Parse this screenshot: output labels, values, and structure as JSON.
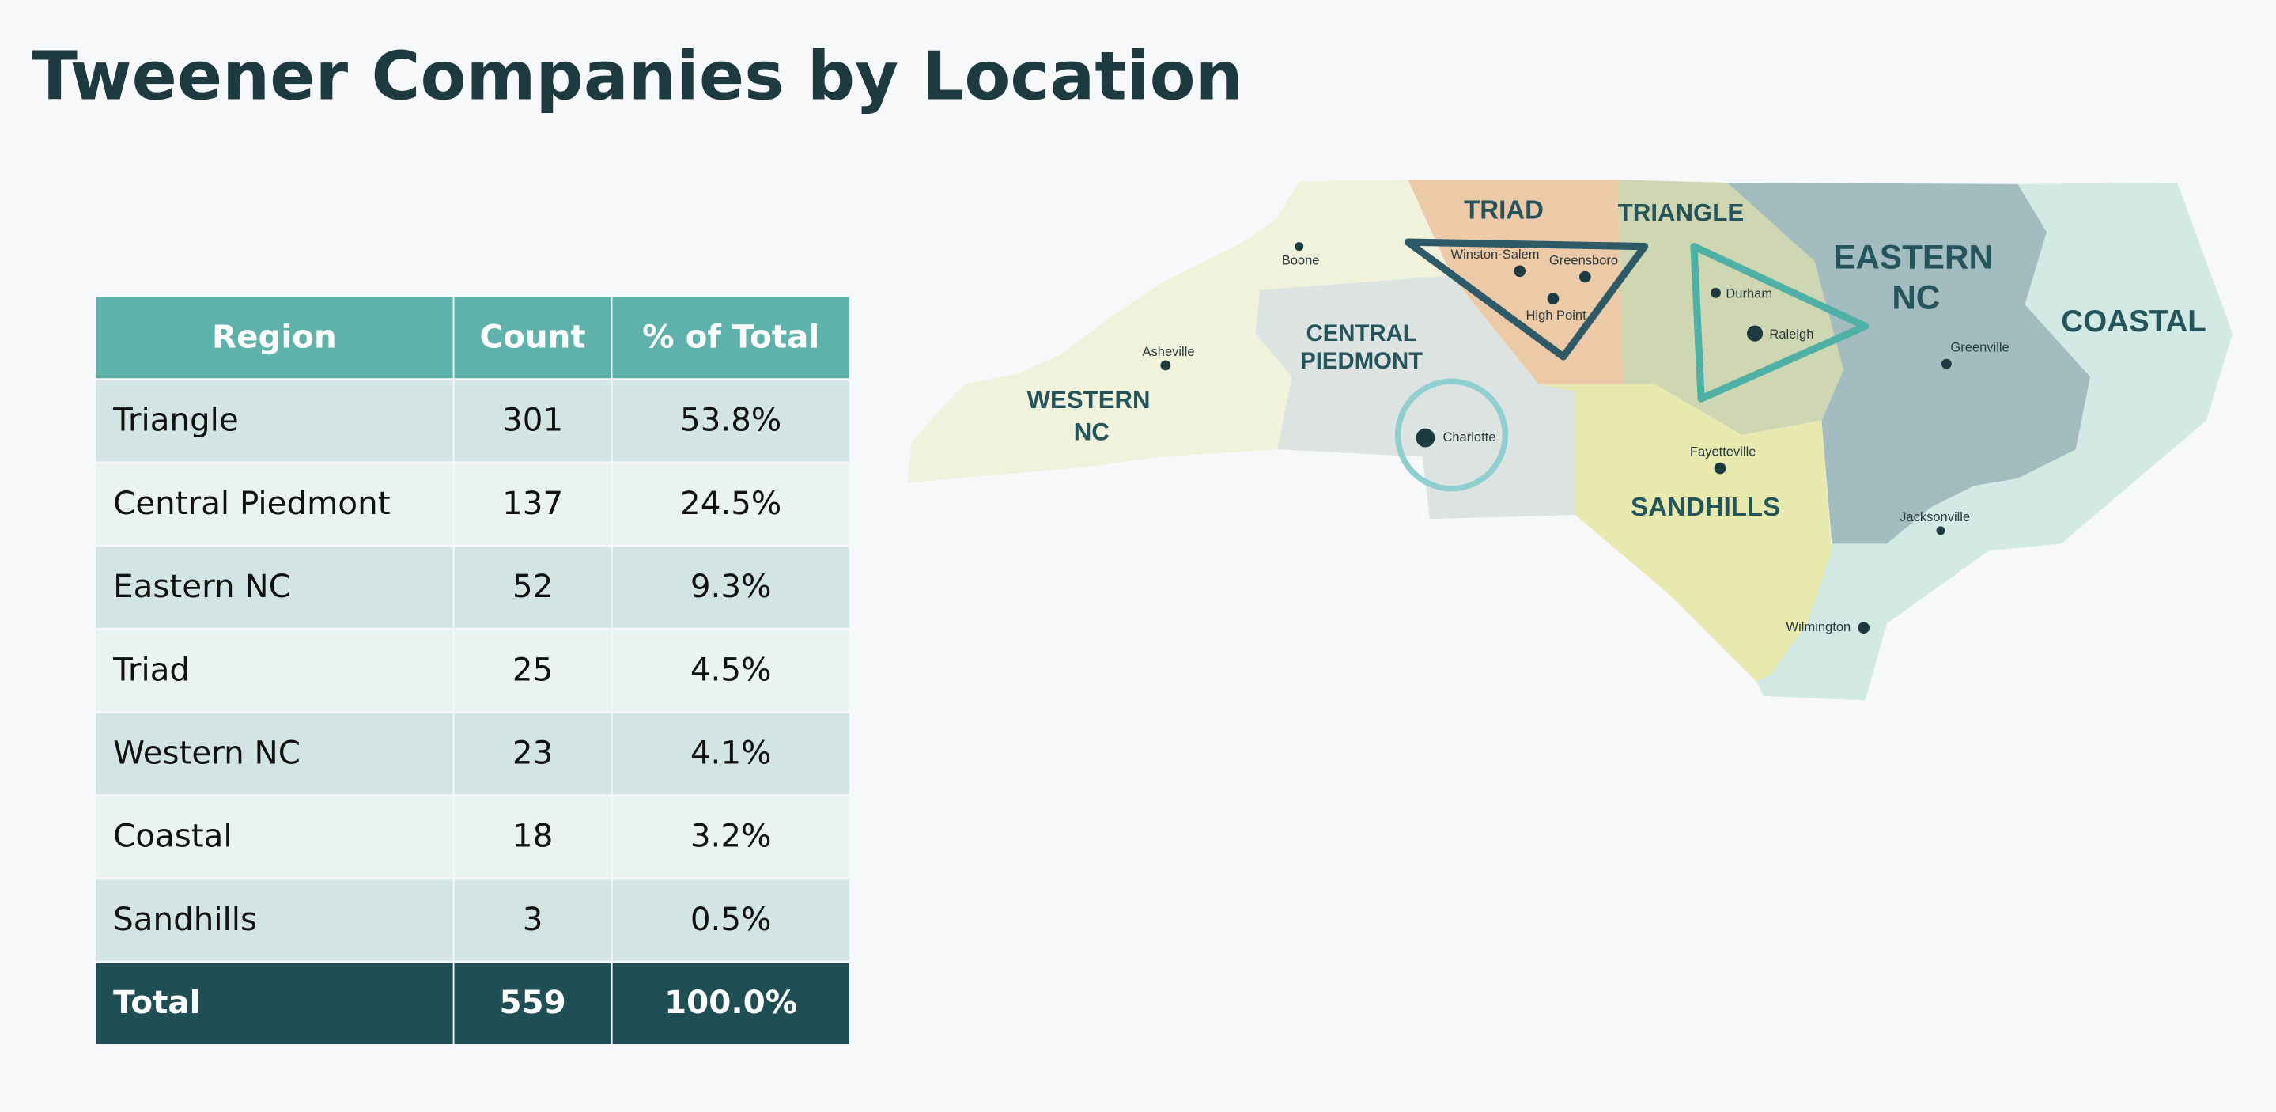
{
  "header": {
    "title": "Tweener Companies by Location"
  },
  "table": {
    "columns": [
      "Region",
      "Count",
      "% of Total"
    ],
    "rows": [
      [
        "Triangle",
        "301",
        "53.8%"
      ],
      [
        "Central Piedmont",
        "137",
        "24.5%"
      ],
      [
        "Eastern NC",
        "52",
        "9.3%"
      ],
      [
        "Triad",
        "25",
        "4.5%"
      ],
      [
        "Western NC",
        "23",
        "4.1%"
      ],
      [
        "Coastal",
        "18",
        "3.2%"
      ],
      [
        "Sandhills",
        "3",
        "0.5%"
      ]
    ],
    "total": [
      "Total",
      "559",
      "100.0%"
    ]
  },
  "map": {
    "regions": [
      {
        "lines": [
          "TRIAD"
        ]
      },
      {
        "lines": [
          "TRIANGLE"
        ]
      },
      {
        "lines": [
          "EASTERN",
          "NC"
        ]
      },
      {
        "lines": [
          "COASTAL"
        ]
      },
      {
        "lines": [
          "CENTRAL",
          "PIEDMONT"
        ]
      },
      {
        "lines": [
          "WESTERN",
          "NC"
        ]
      },
      {
        "lines": [
          "SANDHILLS"
        ]
      }
    ],
    "cities": [
      "Boone",
      "Asheville",
      "Winston-Salem",
      "Greensboro",
      "High Point",
      "Durham",
      "Raleigh",
      "Charlotte",
      "Fayetteville",
      "Greenville",
      "Jacksonville",
      "Wilmington"
    ]
  }
}
